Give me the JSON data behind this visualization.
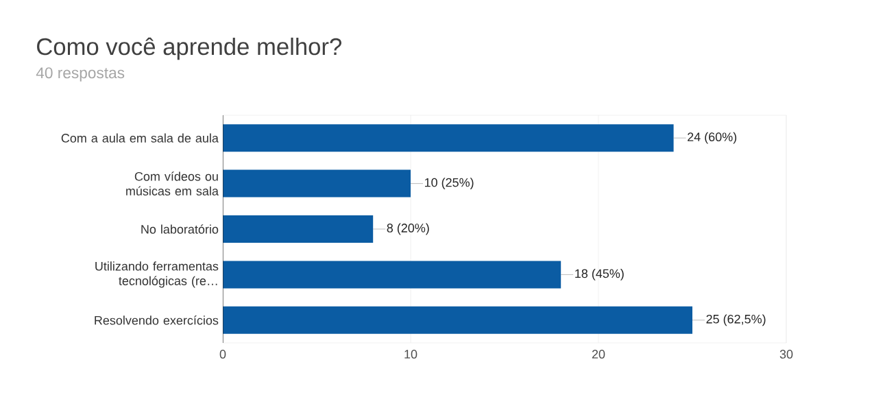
{
  "chart_data": {
    "type": "bar",
    "orientation": "horizontal",
    "title": "Como você aprende melhor?",
    "subtitle": "40 respostas",
    "categories": [
      "Com a aula em sala de aula",
      "Com vídeos ou músicas em sala",
      "No laboratório",
      "Utilizando ferramentas tecnológicas (re…",
      "Resolvendo exercícios"
    ],
    "values": [
      24,
      10,
      8,
      18,
      25
    ],
    "value_labels": [
      "24 (60%)",
      "10 (25%)",
      "8 (20%)",
      "18 (45%)",
      "25 (62,5%)"
    ],
    "color": "#0b5ca3",
    "xlim": [
      0,
      30
    ],
    "xticks": [
      0,
      10,
      20,
      30
    ],
    "grid": "x"
  }
}
